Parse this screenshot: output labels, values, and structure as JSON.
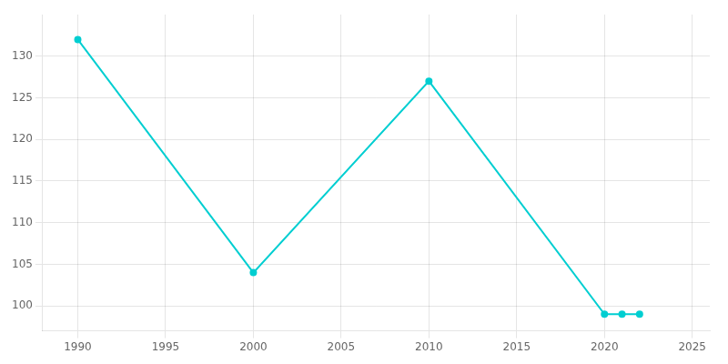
{
  "chart_data": {
    "type": "line",
    "x": [
      1990,
      2000,
      2010,
      2020,
      2021,
      2022
    ],
    "values": [
      132,
      104,
      127,
      99,
      99,
      99
    ],
    "color": "#00CED1",
    "marker": "circle",
    "xlim": [
      1988,
      2026
    ],
    "ylim": [
      97,
      135
    ],
    "xticks": [
      1990,
      1995,
      2000,
      2005,
      2010,
      2015,
      2020,
      2025
    ],
    "yticks": [
      100,
      105,
      110,
      115,
      120,
      125,
      130
    ],
    "grid": true
  }
}
